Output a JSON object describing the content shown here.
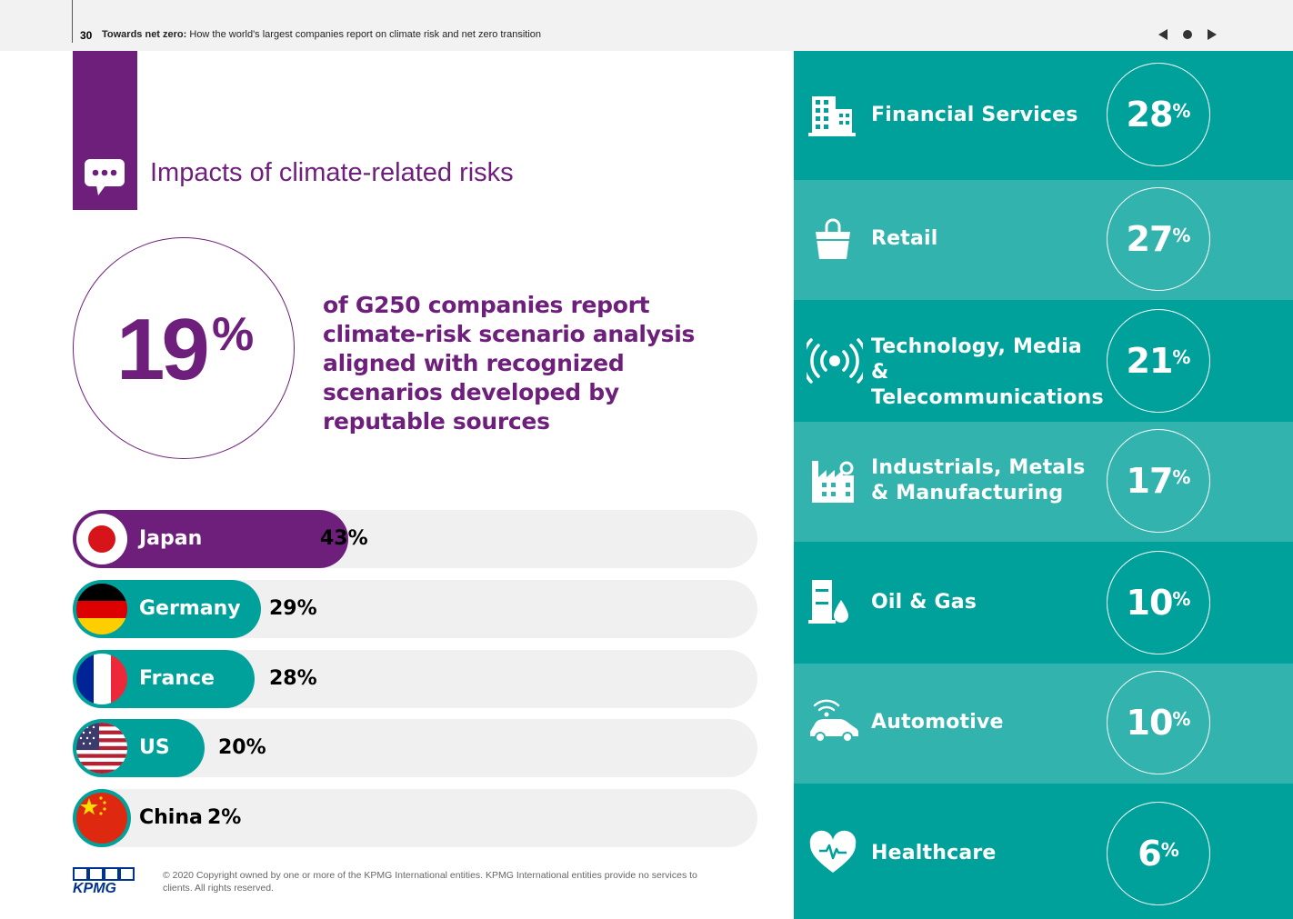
{
  "header": {
    "page_number": "30",
    "report_title_bold": "Towards net zero:",
    "report_title_rest": " How the world's largest companies report on climate risk and net zero transition",
    "nav": [
      "prev-icon",
      "home-icon",
      "next-icon"
    ]
  },
  "section": {
    "title": "Impacts of climate-related risks",
    "icon": "speech-bubble-icon"
  },
  "headline": {
    "value": "19",
    "unit": "%",
    "text": "of G250 companies report climate-risk scenario analysis aligned with recognized scenarios developed by reputable sources"
  },
  "colors": {
    "purple": "#6d1f7b",
    "teal_dark": "#00a19a",
    "teal_light": "#33b3ad",
    "track": "#f0f0f0"
  },
  "chart_data": [
    {
      "type": "bar",
      "orientation": "horizontal",
      "categories": [
        "Japan",
        "Germany",
        "France",
        "US",
        "China"
      ],
      "values": [
        43,
        29,
        28,
        20,
        2
      ],
      "value_labels": [
        "43%",
        "29%",
        "28%",
        "20%",
        "2%"
      ],
      "flags": [
        "japan-flag-icon",
        "germany-flag-icon",
        "france-flag-icon",
        "us-flag-icon",
        "china-flag-icon"
      ],
      "xlim": [
        0,
        100
      ],
      "highlight": "Japan"
    },
    {
      "type": "table",
      "categories": [
        "Financial Services",
        "Retail",
        "Technology, Media & Telecommunications",
        "Industrials, Metals & Manufacturing",
        "Oil & Gas",
        "Automotive",
        "Healthcare"
      ],
      "values": [
        28,
        27,
        21,
        17,
        10,
        10,
        6
      ],
      "unit": "%",
      "icons": [
        "building-icon",
        "shopping-bag-icon",
        "broadcast-icon",
        "factory-icon",
        "oil-gas-icon",
        "connected-car-icon",
        "heart-icon"
      ]
    }
  ],
  "footer": {
    "logo": "KPMG",
    "copyright": "© 2020 Copyright owned by one or more of the KPMG International entities. KPMG International entities provide no services to clients.  All rights reserved."
  }
}
